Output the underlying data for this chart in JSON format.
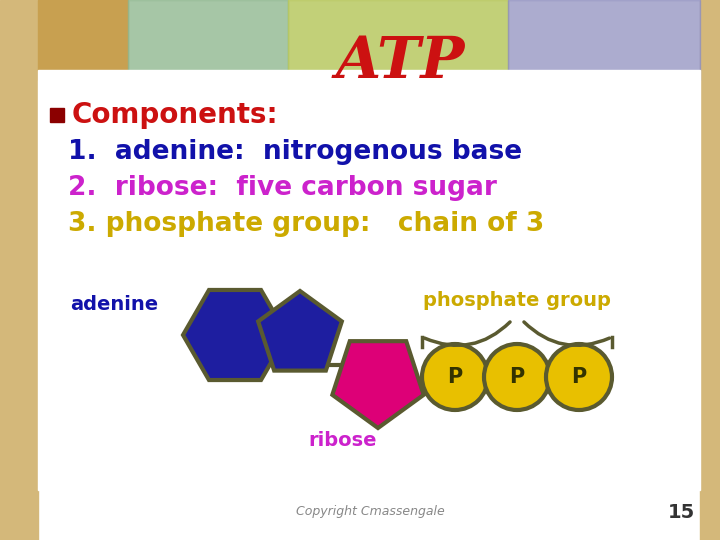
{
  "title": "ATP",
  "title_color": "#CC1111",
  "title_fontsize": 42,
  "bg_color": "#FFFFFF",
  "side_color": "#D4B87A",
  "header_bg": "#C8C8A0",
  "bullet_color": "#8B0000",
  "components_text": "Components:",
  "components_color": "#CC1111",
  "components_fontsize": 20,
  "line1_text": "1.  adenine:  nitrogenous base",
  "line1_color": "#1111AA",
  "line1_fontsize": 19,
  "line2_text": "2.  ribose:  five carbon sugar",
  "line2_color": "#CC22CC",
  "line2_fontsize": 19,
  "line3_text": "3. phosphate group:   chain of 3",
  "line3_color": "#CCAA00",
  "line3_fontsize": 19,
  "adenine_label": "adenine",
  "adenine_label_color": "#1111AA",
  "ribose_label": "ribose",
  "ribose_label_color": "#CC22CC",
  "phosphate_label": "phosphate group",
  "phosphate_label_color": "#CCAA00",
  "adenine_color": "#1E1EA0",
  "adenine_outline": "#5A5A30",
  "ribose_color": "#DD0077",
  "ribose_outline": "#5A5A30",
  "phosphate_fill": "#E8C000",
  "phosphate_outline": "#5A5A30",
  "p_text_color": "#333300",
  "copyright_text": "Copyright Cmassengale",
  "copyright_color": "#888888",
  "page_number": "15",
  "page_number_color": "#333333"
}
